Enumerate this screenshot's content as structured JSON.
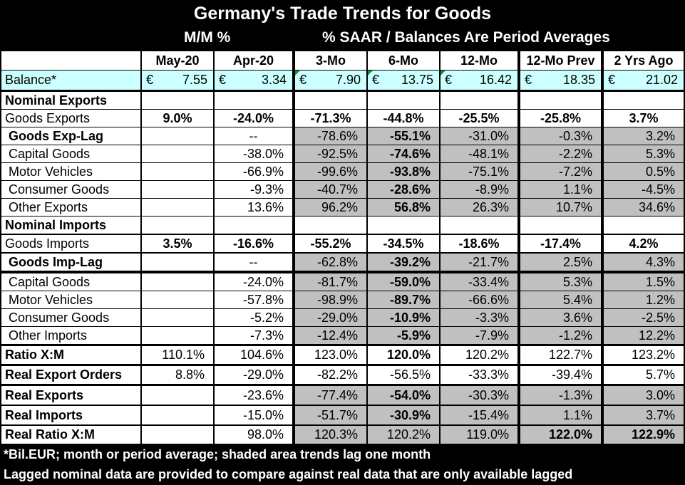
{
  "title": "Germany's Trade Trends for Goods",
  "subtitle_mm": "M/M %",
  "subtitle_saar": "% SAAR / Balances Are Period Averages",
  "columns": [
    "May-20",
    "Apr-20",
    "3-Mo",
    "6-Mo",
    "12-Mo",
    "12-Mo Prev",
    "2 Yrs Ago"
  ],
  "balance": {
    "label": "Balance*",
    "currency": "€",
    "values": [
      "7.55",
      "3.34",
      "7.90",
      "13.75",
      "16.42",
      "18.35",
      "21.02"
    ]
  },
  "rows": [
    {
      "label": "Nominal Exports",
      "values": [
        "",
        "",
        "",
        "",
        "",
        "",
        ""
      ]
    },
    {
      "label": "Goods Exports",
      "values": [
        "9.0%",
        "-24.0%",
        "-71.3%",
        "-44.8%",
        "-25.5%",
        "-25.8%",
        "3.7%"
      ]
    },
    {
      "label": "Goods Exp-Lag",
      "values": [
        "",
        "--",
        "-78.6%",
        "-55.1%",
        "-31.0%",
        "-0.3%",
        "3.2%"
      ]
    },
    {
      "label": "Capital Goods",
      "values": [
        "",
        "-38.0%",
        "-92.5%",
        "-74.6%",
        "-48.1%",
        "-2.2%",
        "5.3%"
      ]
    },
    {
      "label": "Motor Vehicles",
      "values": [
        "",
        "-66.9%",
        "-99.6%",
        "-93.8%",
        "-75.1%",
        "-7.2%",
        "0.5%"
      ]
    },
    {
      "label": "Consumer Goods",
      "values": [
        "",
        "-9.3%",
        "-40.7%",
        "-28.6%",
        "-8.9%",
        "1.1%",
        "-4.5%"
      ]
    },
    {
      "label": "Other Exports",
      "values": [
        "",
        "13.6%",
        "96.2%",
        "56.8%",
        "26.3%",
        "10.7%",
        "34.6%"
      ]
    },
    {
      "label": "Nominal Imports",
      "values": [
        "",
        "",
        "",
        "",
        "",
        "",
        ""
      ]
    },
    {
      "label": "Goods Imports",
      "values": [
        "3.5%",
        "-16.6%",
        "-55.2%",
        "-34.5%",
        "-18.6%",
        "-17.4%",
        "4.2%"
      ]
    },
    {
      "label": "Goods Imp-Lag",
      "values": [
        "",
        "--",
        "-62.8%",
        "-39.2%",
        "-21.7%",
        "2.5%",
        "4.3%"
      ]
    },
    {
      "label": "Capital Goods",
      "values": [
        "",
        "-24.0%",
        "-81.7%",
        "-59.0%",
        "-33.4%",
        "5.3%",
        "1.5%"
      ]
    },
    {
      "label": "Motor Vehicles",
      "values": [
        "",
        "-57.8%",
        "-98.9%",
        "-89.7%",
        "-66.6%",
        "5.4%",
        "1.2%"
      ]
    },
    {
      "label": "Consumer Goods",
      "values": [
        "",
        "-5.2%",
        "-29.0%",
        "-10.9%",
        "-3.3%",
        "3.6%",
        "-2.5%"
      ]
    },
    {
      "label": "Other Imports",
      "values": [
        "",
        "-7.3%",
        "-12.4%",
        "-5.9%",
        "-7.9%",
        "-1.2%",
        "12.2%"
      ]
    },
    {
      "label": "Ratio X:M",
      "values": [
        "110.1%",
        "104.6%",
        "123.0%",
        "120.0%",
        "120.2%",
        "122.7%",
        "123.2%"
      ]
    },
    {
      "label": "Real Export Orders",
      "values": [
        "8.8%",
        "-29.0%",
        "-82.2%",
        "-56.5%",
        "-33.3%",
        "-39.4%",
        "5.7%"
      ]
    },
    {
      "label": "Real Exports",
      "values": [
        "",
        "-23.6%",
        "-77.4%",
        "-54.0%",
        "-30.3%",
        "-1.3%",
        "3.0%"
      ]
    },
    {
      "label": "Real Imports",
      "values": [
        "",
        "-15.0%",
        "-51.7%",
        "-30.9%",
        "-15.4%",
        "1.1%",
        "3.7%"
      ]
    },
    {
      "label": "Real Ratio X:M",
      "values": [
        "",
        "98.0%",
        "120.3%",
        "120.2%",
        "119.0%",
        "122.0%",
        "122.9%"
      ]
    }
  ],
  "footnotes": [
    "*Bil.EUR; month or period average; shaded area trends lag one month",
    "Lagged nominal data are provided to compare against real data that are only available lagged"
  ],
  "colors": {
    "background": "#000000",
    "cell": "#ffffff",
    "shaded": "#c0c0c0",
    "balance_fill": "#ccffff",
    "tick": "#1e8a3a"
  }
}
